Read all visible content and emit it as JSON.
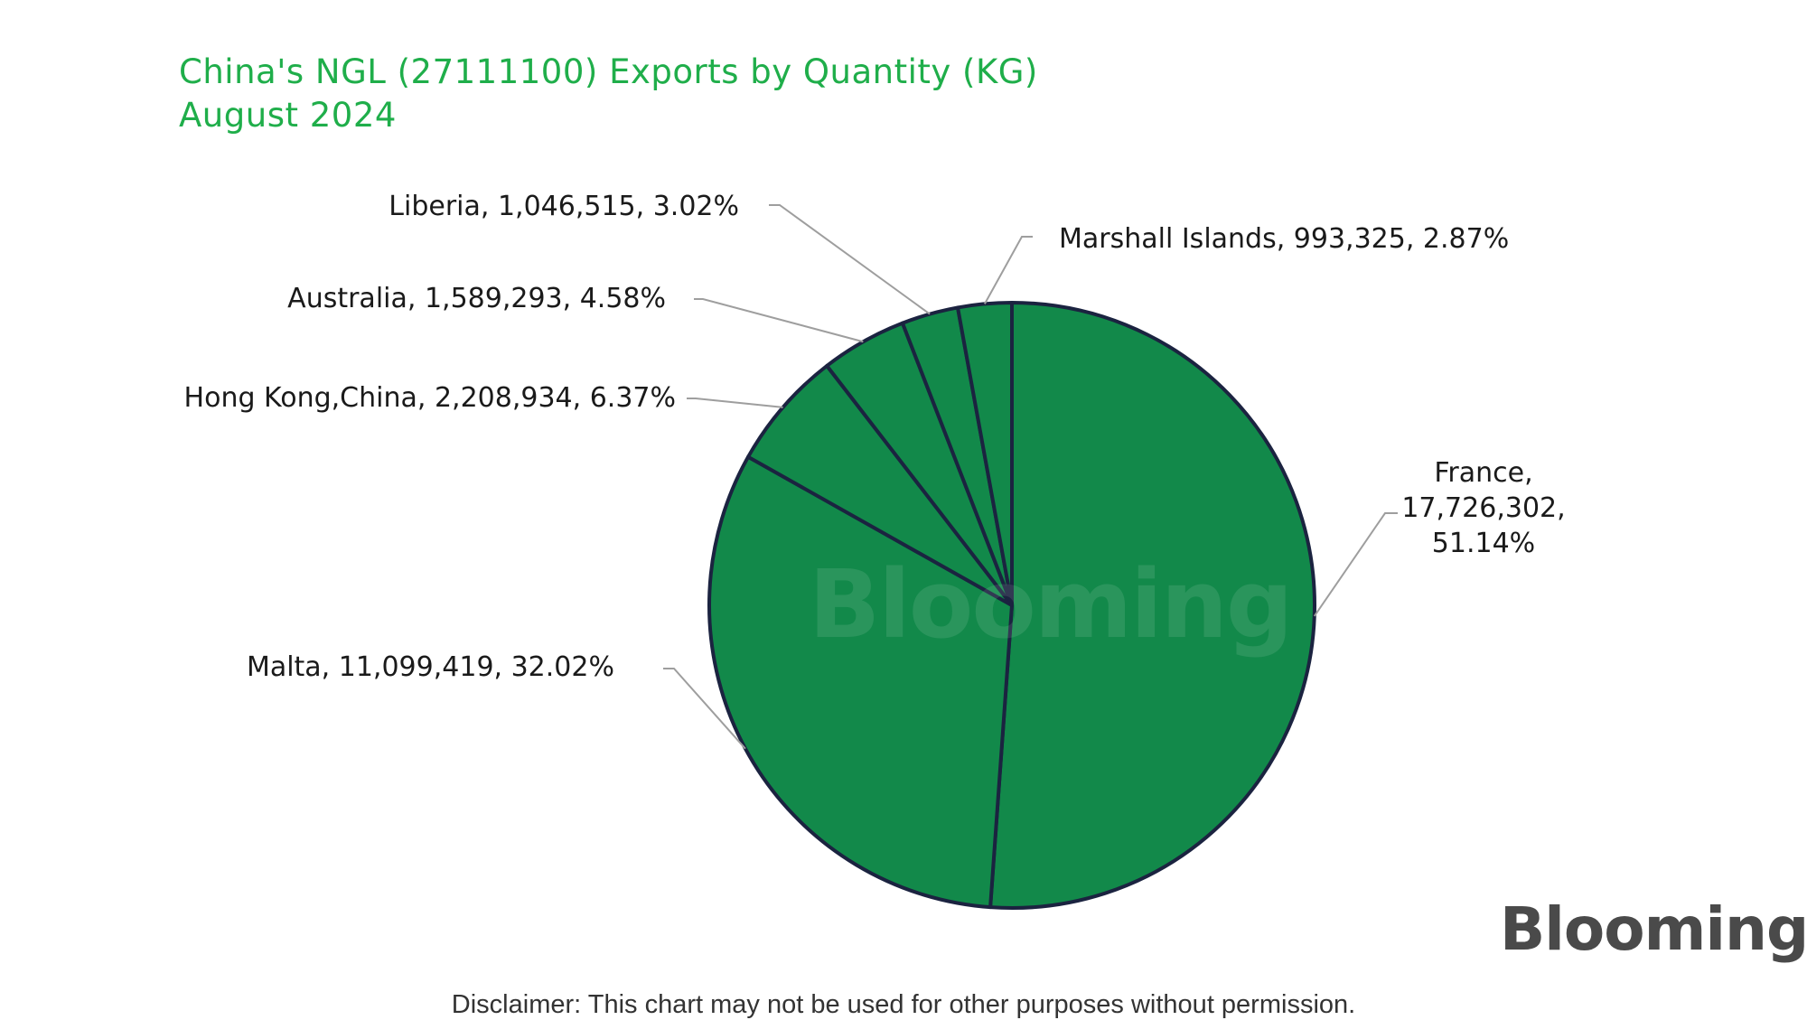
{
  "chart_data": {
    "type": "pie",
    "title": "China's NGL (27111100) Exports by Quantity (KG)",
    "subtitle": "August 2024",
    "slices": [
      {
        "label": "France",
        "value": 17726302,
        "percent": "51.14%",
        "value_text": "17,726,302"
      },
      {
        "label": "Malta",
        "value": 11099419,
        "percent": "32.02%",
        "value_text": "11,099,419"
      },
      {
        "label": "Hong Kong,China",
        "value": 2208934,
        "percent": "6.37%",
        "value_text": "2,208,934"
      },
      {
        "label": "Australia",
        "value": 1589293,
        "percent": "4.58%",
        "value_text": "1,589,293"
      },
      {
        "label": "Liberia",
        "value": 1046515,
        "percent": "3.02%",
        "value_text": "1,046,515"
      },
      {
        "label": "Marshall Islands",
        "value": 993325,
        "percent": "2.87%",
        "value_text": "993,325"
      }
    ],
    "slice_color": "#12894a",
    "border_color": "#1b2340",
    "label_text": {
      "france_line1": "France,",
      "france_line2": "17,726,302,",
      "france_line3": "51.14%",
      "malta": "Malta, 11,099,419, 32.02%",
      "hongkong": "Hong Kong,China, 2,208,934, 6.37%",
      "australia": "Australia, 1,589,293, 4.58%",
      "liberia": "Liberia, 1,046,515, 3.02%",
      "marshall": "Marshall Islands, 993,325, 2.87%"
    }
  },
  "brand": {
    "name": "Blooming",
    "watermark": "Blooming",
    "accent_color": "#1fae4a",
    "eye_color": "#22c55e"
  },
  "disclaimer": "Disclaimer: This chart may not be used for other purposes without permission."
}
